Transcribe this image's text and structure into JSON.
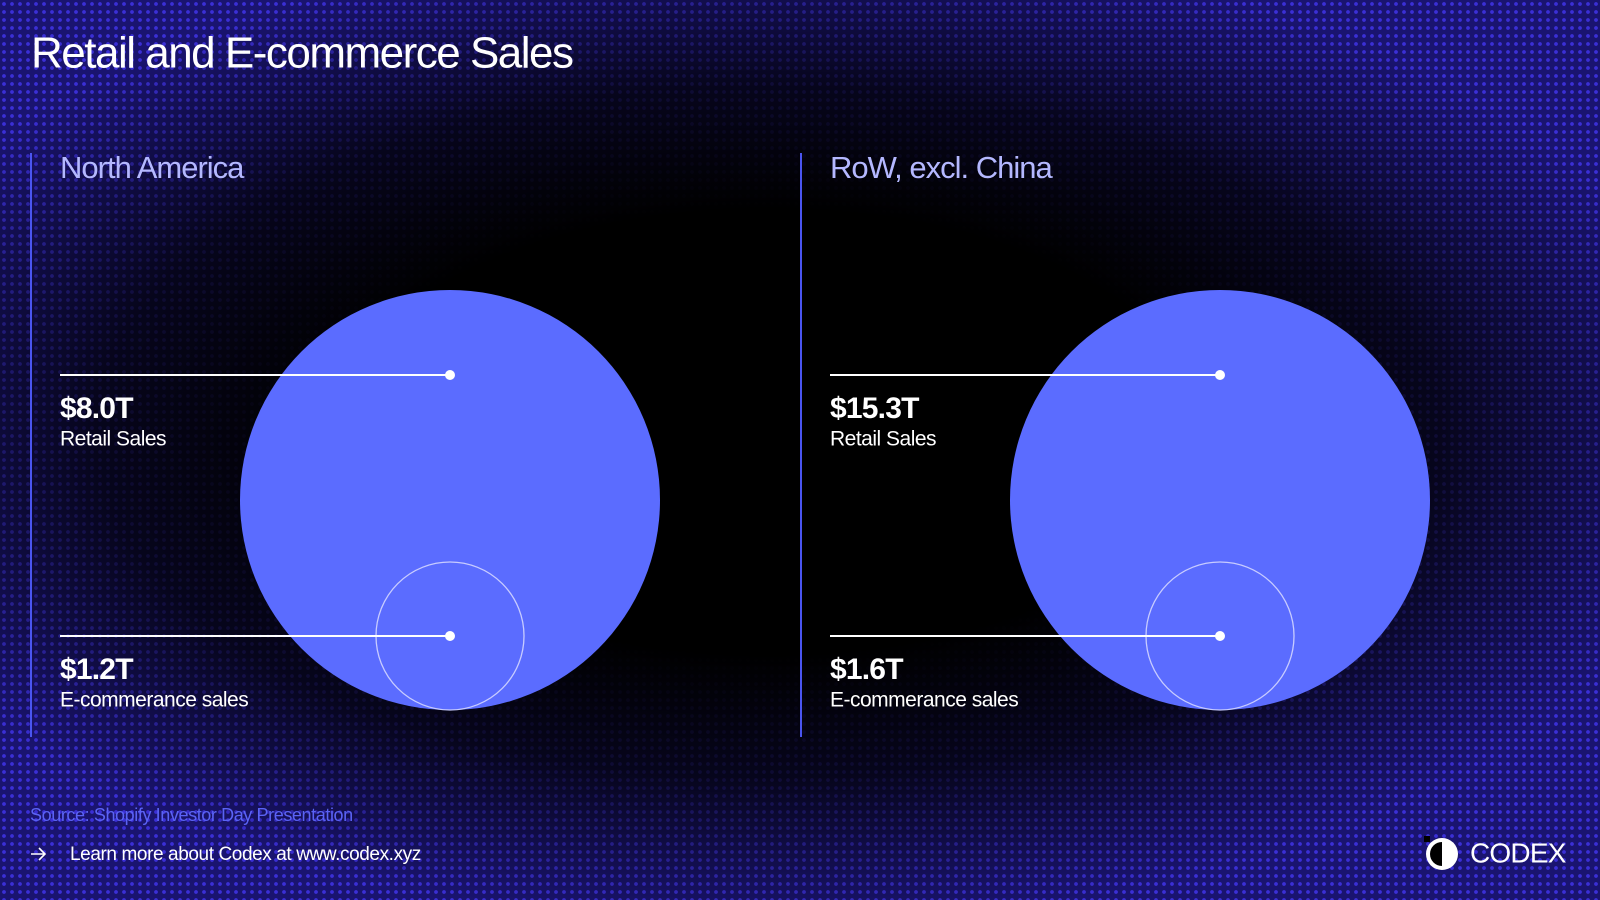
{
  "title": "Retail and E-commerce Sales",
  "panels": [
    {
      "heading": "North America",
      "items": [
        {
          "value": "$8.0T",
          "label": "Retail Sales"
        },
        {
          "value": "$1.2T",
          "label": "E-commerance sales"
        }
      ]
    },
    {
      "heading": "RoW, excl. China",
      "items": [
        {
          "value": "$15.3T",
          "label": "Retail Sales"
        },
        {
          "value": "$1.6T",
          "label": "E-commerance sales"
        }
      ]
    }
  ],
  "footer": {
    "source": "Source: Shopify Investor Day Presentation",
    "link": "Learn more about Codex at www.codex.xyz",
    "logo": "CODEX"
  }
}
